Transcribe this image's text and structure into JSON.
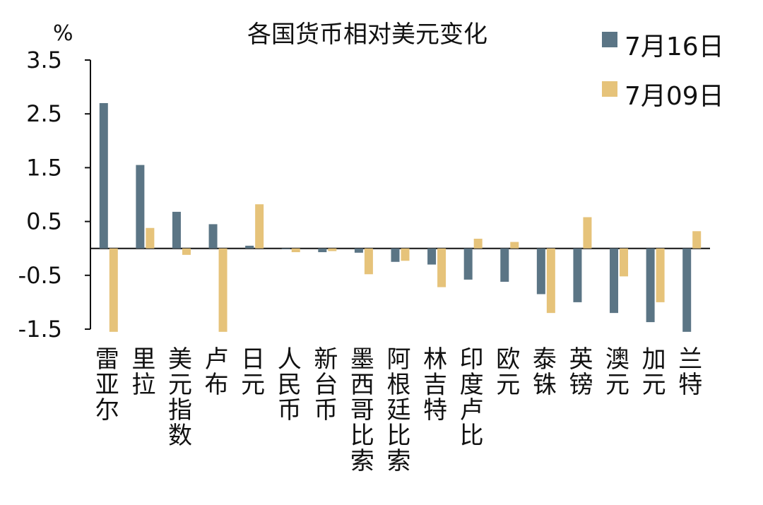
{
  "chart_data": {
    "type": "bar",
    "title": "各国货币相对美元变化",
    "unit_label": "%",
    "categories": [
      "雷亚尔",
      "里拉",
      "美元指数",
      "卢布",
      "日元",
      "人民币",
      "新台币",
      "墨西哥比索",
      "阿根廷比索",
      "林吉特",
      "印度卢比",
      "欧元",
      "泰铢",
      "英镑",
      "澳元",
      "加元",
      "兰特"
    ],
    "series": [
      {
        "name": "7月16日",
        "color": "#5b7585",
        "values": [
          2.7,
          1.55,
          0.68,
          0.45,
          0.05,
          0.0,
          -0.07,
          -0.08,
          -0.25,
          -0.3,
          -0.58,
          -0.62,
          -0.85,
          -1.0,
          -1.2,
          -1.37,
          -1.55
        ]
      },
      {
        "name": "7月09日",
        "color": "#e6c37a",
        "values": [
          -1.55,
          0.38,
          -0.12,
          -1.55,
          0.82,
          -0.07,
          -0.05,
          -0.48,
          -0.23,
          -0.72,
          0.18,
          0.12,
          -1.2,
          0.58,
          -0.52,
          -1.0,
          0.32
        ]
      }
    ],
    "yticks": [
      "3.5",
      "2.5",
      "1.5",
      "0.5",
      "-0.5",
      "-1.5"
    ],
    "ylim": [
      -1.5,
      3.5
    ],
    "legend_position": "top-right",
    "grid": false
  }
}
